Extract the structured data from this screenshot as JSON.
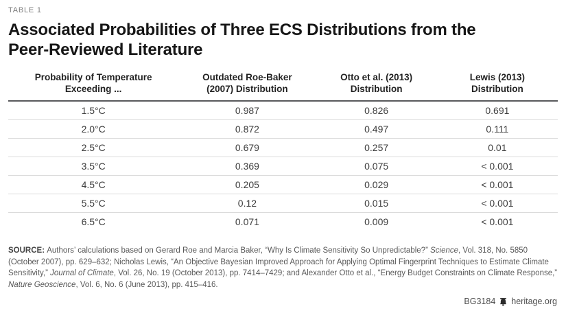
{
  "figure": {
    "eyebrow": "TABLE 1",
    "title_line1": "Associated Probabilities of Three ECS Distributions from the",
    "title_line2": "Peer-Reviewed Literature"
  },
  "table": {
    "columns": [
      {
        "id": "temp",
        "label": "Probability of Temperature\nExceeding ..."
      },
      {
        "id": "roe-baker",
        "label": "Outdated Roe-Baker\n(2007) Distribution"
      },
      {
        "id": "otto",
        "label": "Otto et al. (2013)\nDistribution"
      },
      {
        "id": "lewis",
        "label": "Lewis (2013)\nDistribution"
      }
    ],
    "rows": [
      [
        "1.5°C",
        "0.987",
        "0.826",
        "0.691"
      ],
      [
        "2.0°C",
        "0.872",
        "0.497",
        "0.111"
      ],
      [
        "2.5°C",
        "0.679",
        "0.257",
        "0.01"
      ],
      [
        "3.5°C",
        "0.369",
        "0.075",
        "< 0.001"
      ],
      [
        "4.5°C",
        "0.205",
        "0.029",
        "< 0.001"
      ],
      [
        "5.5°C",
        "0.12",
        "0.015",
        "< 0.001"
      ],
      [
        "6.5°C",
        "0.071",
        "0.009",
        "< 0.001"
      ]
    ]
  },
  "chart_data": {
    "type": "table",
    "title": "Associated Probabilities of Three ECS Distributions from the Peer-Reviewed Literature",
    "categories_label": "Probability of Temperature Exceeding ...",
    "categories": [
      "1.5°C",
      "2.0°C",
      "2.5°C",
      "3.5°C",
      "4.5°C",
      "5.5°C",
      "6.5°C"
    ],
    "series": [
      {
        "name": "Outdated Roe-Baker (2007) Distribution",
        "values": [
          0.987,
          0.872,
          0.679,
          0.369,
          0.205,
          0.12,
          0.071
        ]
      },
      {
        "name": "Otto et al. (2013) Distribution",
        "values": [
          0.826,
          0.497,
          0.257,
          0.075,
          0.029,
          0.015,
          0.009
        ]
      },
      {
        "name": "Lewis (2013) Distribution",
        "values": [
          "0.691",
          "0.111",
          "0.01",
          "< 0.001",
          "< 0.001",
          "< 0.001",
          "< 0.001"
        ]
      }
    ]
  },
  "source": {
    "segments": [
      {
        "text": "SOURCE: ",
        "bold": true
      },
      {
        "text": "Authors’ calculations based on Gerard Roe and Marcia Baker, “Why Is Climate Sensitivity So Unpredictable?” "
      },
      {
        "text": "Science",
        "italic": true
      },
      {
        "text": ", Vol. 318, No. 5850 (October 2007), pp. 629–632; Nicholas Lewis, “An Objective Bayesian Improved Approach for Applying Optimal Fingerprint Techniques to Estimate Climate Sensitivity,” "
      },
      {
        "text": "Journal of Climate",
        "italic": true
      },
      {
        "text": ", Vol. 26, No. 19 (October 2013), pp. 7414–7429; and Alexander Otto et al., “Energy Budget Constraints on Climate Response,” "
      },
      {
        "text": "Nature Geoscience",
        "italic": true
      },
      {
        "text": ", Vol. 6, No. 6 (June 2013), pp. 415–416."
      }
    ]
  },
  "footer": {
    "doc_id": "BG3184",
    "logo_icon": "heritage-bell-icon",
    "site": "heritage.org"
  },
  "colors": {
    "header_rule": "#58595b",
    "row_rule": "#dbdbdb",
    "eyebrow_text": "#7d7d7d",
    "body_text": "#3d3d3d"
  }
}
